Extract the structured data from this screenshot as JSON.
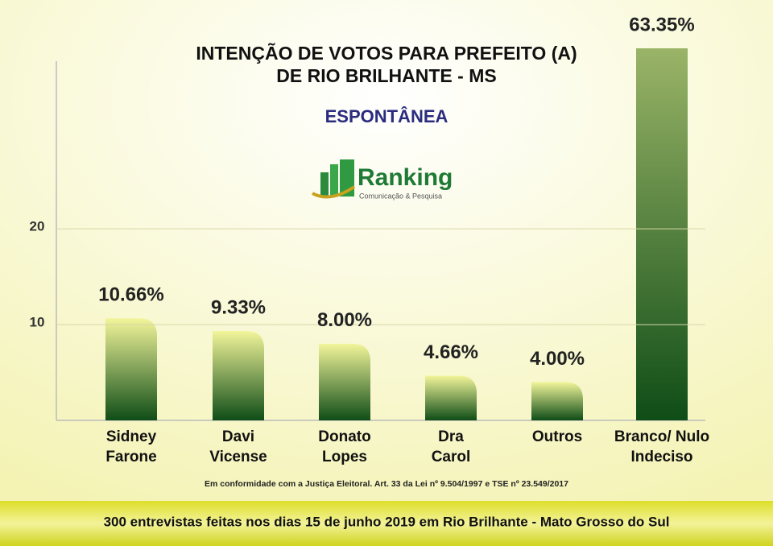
{
  "chart_data": {
    "type": "bar",
    "title": [
      "INTENÇÃO DE VOTOS PARA PREFEITO (A)",
      "DE RIO BRILHANTE - MS"
    ],
    "subtitle": "ESPONTÂNEA",
    "logo": {
      "name": "Ranking",
      "tagline": "Comunicação & Pesquisa"
    },
    "categories": [
      [
        "Sidney",
        "Farone"
      ],
      [
        "Davi",
        "Vicense"
      ],
      [
        "Donato",
        "Lopes"
      ],
      [
        "Dra",
        "Carol"
      ],
      [
        "Outros"
      ],
      [
        "Branco/ Nulo",
        "Indeciso"
      ]
    ],
    "values": [
      10.66,
      9.33,
      8.0,
      4.66,
      4.0,
      63.35
    ],
    "value_labels": [
      "10.66%",
      "9.33%",
      "8.00%",
      "4.66%",
      "4.00%",
      "63.35%"
    ],
    "ylim": [
      0,
      37.5
    ],
    "yticks": [
      10,
      20
    ],
    "grid": true,
    "color": [
      "#f2f59a",
      "#0f4d17"
    ],
    "note": "Em conformidade com a Justiça Eleitoral. Art. 33 da Lei nº 9.504/1997 e TSE nº 23.549/2017",
    "footer": "300 entrevistas feitas nos dias 15 de junho 2019 em Rio Brilhante - Mato Grosso do Sul"
  }
}
